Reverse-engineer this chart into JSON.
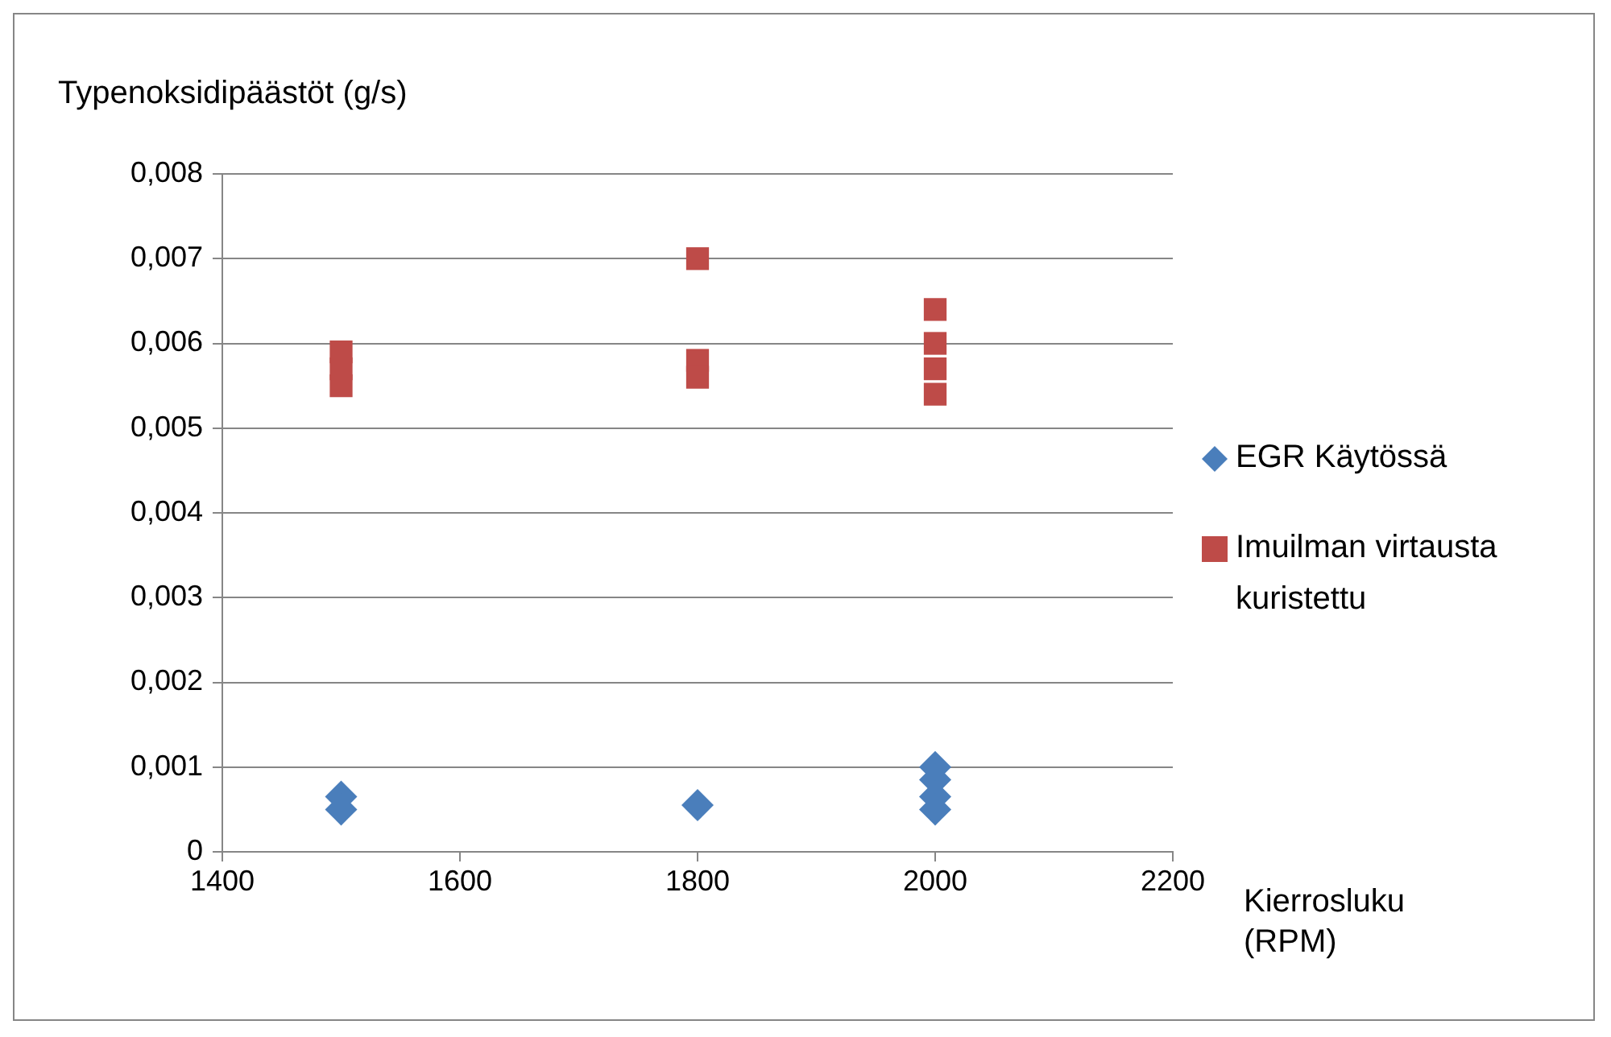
{
  "chart_data": {
    "type": "scatter",
    "ylabel": "Typenoksidipäästöt (g/s)",
    "xlabel": "Kierrosluku (RPM)",
    "xlim": [
      1400,
      2200
    ],
    "xticks": [
      1400,
      1600,
      1800,
      2000,
      2200
    ],
    "ylim": [
      0,
      0.008
    ],
    "yticks": [
      {
        "value": 0,
        "label": "0"
      },
      {
        "value": 0.001,
        "label": "0,001"
      },
      {
        "value": 0.002,
        "label": "0,002"
      },
      {
        "value": 0.003,
        "label": "0,003"
      },
      {
        "value": 0.004,
        "label": "0,004"
      },
      {
        "value": 0.005,
        "label": "0,005"
      },
      {
        "value": 0.006,
        "label": "0,006"
      },
      {
        "value": 0.007,
        "label": "0,007"
      },
      {
        "value": 0.008,
        "label": "0,008"
      }
    ],
    "grid": "y",
    "legend": "right",
    "series": [
      {
        "name": "EGR Käytössä",
        "color": "#4a7ebb",
        "marker": "diamond",
        "x": [
          1500,
          1500,
          1800,
          2000,
          2000,
          2000,
          2000
        ],
        "values": [
          0.00065,
          0.0005,
          0.00055,
          0.001,
          0.00085,
          0.00065,
          0.0005
        ]
      },
      {
        "name": "Imuilman virtausta kuristettu",
        "color": "#be4b48",
        "marker": "square",
        "x": [
          1500,
          1500,
          1500,
          1800,
          1800,
          1800,
          2000,
          2000,
          2000,
          2000
        ],
        "values": [
          0.0059,
          0.0057,
          0.0055,
          0.007,
          0.0058,
          0.0056,
          0.0064,
          0.006,
          0.0057,
          0.0054
        ]
      }
    ]
  }
}
